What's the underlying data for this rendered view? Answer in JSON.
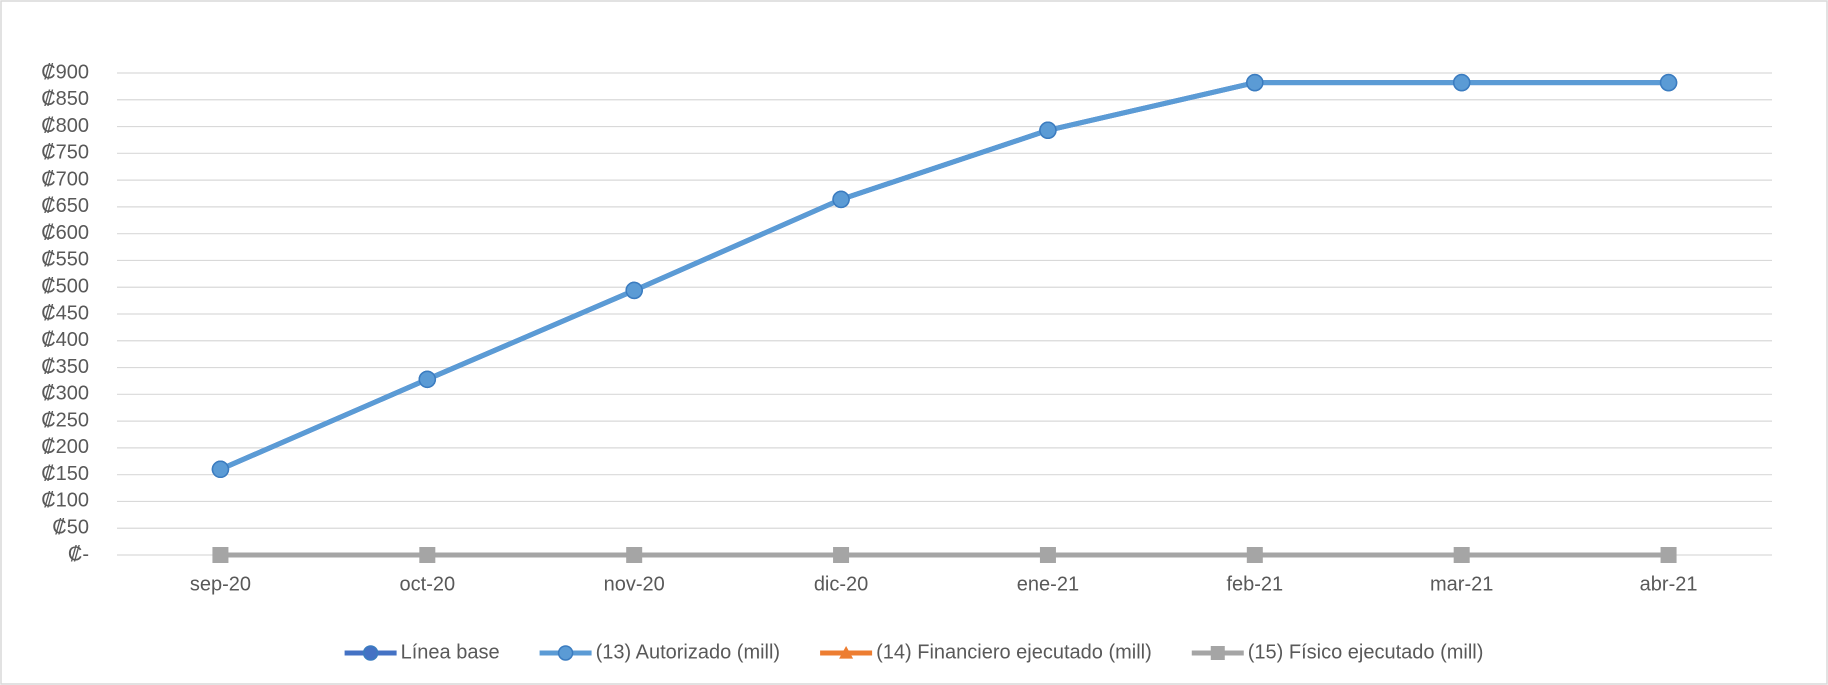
{
  "chart_data": {
    "type": "line",
    "categories": [
      "sep-20",
      "oct-20",
      "nov-20",
      "dic-20",
      "ene-21",
      "feb-21",
      "mar-21",
      "abr-21"
    ],
    "series": [
      {
        "name": "Línea base",
        "color": "#4472c4",
        "marker": "circle",
        "values": [
          160,
          328,
          494,
          664,
          793,
          882,
          882,
          882
        ]
      },
      {
        "name": "(13) Autorizado (mill)",
        "color": "#5b9bd5",
        "marker": "circle",
        "values": [
          160,
          328,
          494,
          664,
          793,
          882,
          882,
          882
        ]
      },
      {
        "name": "(14) Financiero ejecutado (mill)",
        "color": "#ed7d31",
        "marker": "triangle",
        "values": [
          0,
          0,
          0,
          0,
          0,
          0,
          0,
          0
        ]
      },
      {
        "name": "(15) Físico ejecutado (mill)",
        "color": "#a5a5a5",
        "marker": "square",
        "values": [
          0,
          0,
          0,
          0,
          0,
          0,
          0,
          0
        ]
      }
    ],
    "ylim": [
      0,
      900
    ],
    "yticks": [
      {
        "value": 0,
        "label": "₡-"
      },
      {
        "value": 50,
        "label": "₡50"
      },
      {
        "value": 100,
        "label": "₡100"
      },
      {
        "value": 150,
        "label": "₡150"
      },
      {
        "value": 200,
        "label": "₡200"
      },
      {
        "value": 250,
        "label": "₡250"
      },
      {
        "value": 300,
        "label": "₡300"
      },
      {
        "value": 350,
        "label": "₡350"
      },
      {
        "value": 400,
        "label": "₡400"
      },
      {
        "value": 450,
        "label": "₡450"
      },
      {
        "value": 500,
        "label": "₡500"
      },
      {
        "value": 550,
        "label": "₡550"
      },
      {
        "value": 600,
        "label": "₡600"
      },
      {
        "value": 650,
        "label": "₡650"
      },
      {
        "value": 700,
        "label": "₡700"
      },
      {
        "value": 750,
        "label": "₡750"
      },
      {
        "value": 800,
        "label": "₡800"
      },
      {
        "value": 850,
        "label": "₡850"
      },
      {
        "value": 900,
        "label": "₡900"
      }
    ],
    "grid": true,
    "legend": "bottom"
  }
}
